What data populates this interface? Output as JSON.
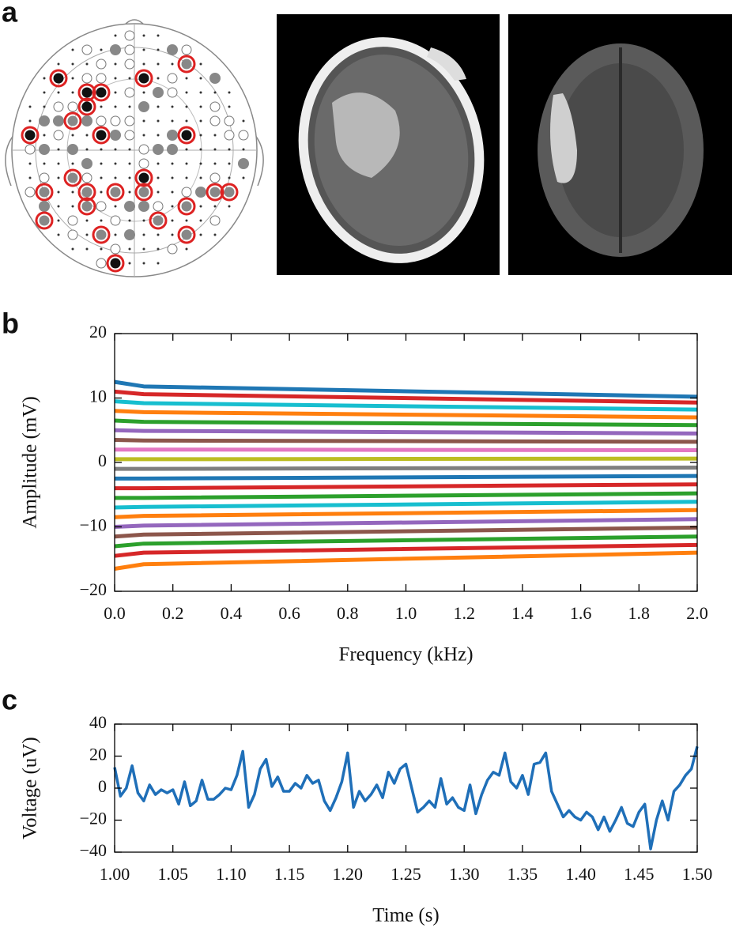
{
  "panel_labels": [
    "a",
    "b",
    "c"
  ],
  "chart_data": [
    {
      "type": "line",
      "xlabel": "Frequency (kHz)",
      "ylabel": "Amplitude (mV)",
      "x": [
        0,
        0.1,
        2.0
      ],
      "series": [
        {
          "color": "#1f77b4",
          "values": [
            12.5,
            11.8,
            10.2
          ]
        },
        {
          "color": "#d62728",
          "values": [
            11,
            10.6,
            9.3
          ]
        },
        {
          "color": "#17becf",
          "values": [
            9.5,
            9.2,
            8.2
          ]
        },
        {
          "color": "#ff7f0e",
          "values": [
            8,
            7.8,
            7
          ]
        },
        {
          "color": "#2ca02c",
          "values": [
            6.5,
            6.3,
            5.8
          ]
        },
        {
          "color": "#9467bd",
          "values": [
            5,
            4.9,
            4.5
          ]
        },
        {
          "color": "#8c564b",
          "values": [
            3.5,
            3.4,
            3.2
          ]
        },
        {
          "color": "#e377c2",
          "values": [
            2,
            2,
            1.9
          ]
        },
        {
          "color": "#bcbd22",
          "values": [
            0.5,
            0.5,
            0.6
          ]
        },
        {
          "color": "#7f7f7f",
          "values": [
            -1,
            -1,
            -0.8
          ]
        },
        {
          "color": "#1f77b4",
          "values": [
            -2.5,
            -2.5,
            -2.1
          ]
        },
        {
          "color": "#d62728",
          "values": [
            -4,
            -4,
            -3.4
          ]
        },
        {
          "color": "#2ca02c",
          "values": [
            -5.5,
            -5.5,
            -4.8
          ]
        },
        {
          "color": "#17becf",
          "values": [
            -7,
            -6.9,
            -6.1
          ]
        },
        {
          "color": "#ff7f0e",
          "values": [
            -8.5,
            -8.3,
            -7.4
          ]
        },
        {
          "color": "#9467bd",
          "values": [
            -10,
            -9.8,
            -8.8
          ]
        },
        {
          "color": "#8c564b",
          "values": [
            -11.5,
            -11.2,
            -10.1
          ]
        },
        {
          "color": "#2ca02c",
          "values": [
            -13,
            -12.6,
            -11.5
          ]
        },
        {
          "color": "#d62728",
          "values": [
            -14.5,
            -14,
            -12.8
          ]
        },
        {
          "color": "#ff7f0e",
          "values": [
            -16.5,
            -15.8,
            -14
          ]
        }
      ],
      "xlim": [
        0,
        2.0
      ],
      "xticks": [
        {
          "value": 0,
          "label": "0.0"
        },
        {
          "value": 0.2,
          "label": "0.2"
        },
        {
          "value": 0.4,
          "label": "0.4"
        },
        {
          "value": 0.6,
          "label": "0.6"
        },
        {
          "value": 0.8,
          "label": "0.8"
        },
        {
          "value": 1.0,
          "label": "1.0"
        },
        {
          "value": 1.2,
          "label": "1.2"
        },
        {
          "value": 1.4,
          "label": "1.4"
        },
        {
          "value": 1.6,
          "label": "1.6"
        },
        {
          "value": 1.8,
          "label": "1.8"
        },
        {
          "value": 2.0,
          "label": "2.0"
        }
      ],
      "ylim": [
        -20,
        20
      ],
      "yticks": [
        {
          "value": -20,
          "label": "−20"
        },
        {
          "value": -10,
          "label": "−10"
        },
        0,
        10,
        20
      ],
      "line_width": 5
    },
    {
      "type": "line",
      "xlabel": "Time (s)",
      "ylabel": "Voltage (uV)",
      "x": [
        1.0,
        1.005,
        1.01,
        1.015,
        1.02,
        1.025,
        1.03,
        1.035,
        1.04,
        1.045,
        1.05,
        1.055,
        1.06,
        1.065,
        1.07,
        1.075,
        1.08,
        1.085,
        1.09,
        1.095,
        1.1,
        1.105,
        1.11,
        1.115,
        1.12,
        1.125,
        1.13,
        1.135,
        1.14,
        1.145,
        1.15,
        1.155,
        1.16,
        1.165,
        1.17,
        1.175,
        1.18,
        1.185,
        1.19,
        1.195,
        1.2,
        1.205,
        1.21,
        1.215,
        1.22,
        1.225,
        1.23,
        1.235,
        1.24,
        1.245,
        1.25,
        1.255,
        1.26,
        1.265,
        1.27,
        1.275,
        1.28,
        1.285,
        1.29,
        1.295,
        1.3,
        1.305,
        1.31,
        1.315,
        1.32,
        1.325,
        1.33,
        1.335,
        1.34,
        1.345,
        1.35,
        1.355,
        1.36,
        1.365,
        1.37,
        1.375,
        1.38,
        1.385,
        1.39,
        1.395,
        1.4,
        1.405,
        1.41,
        1.415,
        1.42,
        1.425,
        1.43,
        1.435,
        1.44,
        1.445,
        1.45,
        1.455,
        1.46,
        1.465,
        1.47,
        1.475,
        1.48,
        1.485,
        1.49,
        1.495,
        1.5
      ],
      "series": [
        {
          "color": "#1f6fb8",
          "values": [
            13,
            -5,
            0,
            14,
            -3,
            -8,
            2,
            -4,
            -1,
            -3,
            -1,
            -10,
            4,
            -11,
            -8,
            5,
            -7,
            -7,
            -4,
            0,
            -1,
            8,
            23,
            -12,
            -4,
            12,
            18,
            1,
            7,
            -2,
            -2,
            3,
            0,
            8,
            3,
            5,
            -8,
            -14,
            -6,
            4,
            22,
            -12,
            -2,
            -8,
            -4,
            2,
            -6,
            10,
            3,
            12,
            15,
            0,
            -15,
            -12,
            -8,
            -12,
            6,
            -10,
            -6,
            -12,
            -14,
            2,
            -16,
            -4,
            5,
            10,
            8,
            22,
            4,
            0,
            8,
            -4,
            15,
            16,
            22,
            -2,
            -10,
            -18,
            -14,
            -18,
            -20,
            -15,
            -18,
            -26,
            -18,
            -27,
            -20,
            -12,
            -22,
            -24,
            -15,
            -10,
            -38,
            -20,
            -8,
            -20,
            -2,
            2,
            8,
            12,
            26
          ]
        }
      ],
      "xlim": [
        1.0,
        1.5
      ],
      "xticks": [
        {
          "value": 1.0,
          "label": "1.00"
        },
        {
          "value": 1.05,
          "label": "1.05"
        },
        {
          "value": 1.1,
          "label": "1.10"
        },
        {
          "value": 1.15,
          "label": "1.15"
        },
        {
          "value": 1.2,
          "label": "1.20"
        },
        {
          "value": 1.25,
          "label": "1.25"
        },
        {
          "value": 1.3,
          "label": "1.30"
        },
        {
          "value": 1.35,
          "label": "1.35"
        },
        {
          "value": 1.4,
          "label": "1.40"
        },
        {
          "value": 1.45,
          "label": "1.45"
        },
        {
          "value": 1.5,
          "label": "1.50"
        }
      ],
      "ylim": [
        -40,
        40
      ],
      "yticks": [
        {
          "value": -40,
          "label": "−40"
        },
        {
          "value": -20,
          "label": "−20"
        },
        0,
        20,
        40
      ],
      "line_width": 3.5
    }
  ]
}
